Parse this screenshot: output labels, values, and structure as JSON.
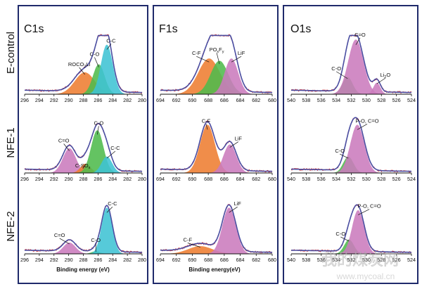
{
  "row_labels": [
    "E-control",
    "NFE-1",
    "NFE-2"
  ],
  "panel_titles": [
    "C1s",
    "F1s",
    "O1s"
  ],
  "xlabels": [
    "Binding energy (eV)",
    "Binding energy(eV)",
    ""
  ],
  "watermark": {
    "cn": "我的煤炭网",
    "url": "www.mycoal.cn"
  },
  "colors": {
    "orange": "#ee7d31",
    "green": "#4fbb4c",
    "cyan": "#3fc3d4",
    "pink": "#cb7bbd",
    "envelope": "#4a4fa3",
    "raw": "#d83a3a",
    "frame": "#1f2a6b"
  },
  "chart_data": [
    {
      "type": "area",
      "spectrum": "C1s",
      "x_ticks": [
        296,
        294,
        292,
        290,
        288,
        286,
        284,
        282,
        280
      ],
      "xlim": [
        296,
        280
      ],
      "rows": [
        {
          "sample": "E-control",
          "components": [
            {
              "label": "ROCO2Li",
              "label_parts": [
                "ROCO",
                "2",
                "Li"
              ],
              "center": 287.8,
              "fwhm": 3.2,
              "height": 0.38,
              "color": "orange"
            },
            {
              "label": "C-O",
              "center": 285.9,
              "fwhm": 1.9,
              "height": 0.52,
              "color": "green"
            },
            {
              "label": "C-C",
              "center": 284.8,
              "fwhm": 1.9,
              "height": 0.86,
              "color": "cyan"
            }
          ]
        },
        {
          "sample": "NFE-1",
          "components": [
            {
              "label": "C=O",
              "center": 289.9,
              "fwhm": 2.1,
              "height": 0.45,
              "color": "pink"
            },
            {
              "label": "C-SOx",
              "label_parts": [
                "C-SO",
                "x",
                ""
              ],
              "center": 287.7,
              "fwhm": 1.6,
              "height": 0.17,
              "color": "orange"
            },
            {
              "label": "C-O",
              "center": 286.1,
              "fwhm": 2.0,
              "height": 0.78,
              "color": "green"
            },
            {
              "label": "C-C",
              "center": 284.8,
              "fwhm": 1.7,
              "height": 0.3,
              "color": "cyan"
            }
          ]
        },
        {
          "sample": "NFE-2",
          "components": [
            {
              "label": "C=O",
              "center": 289.9,
              "fwhm": 2.0,
              "height": 0.22,
              "color": "pink"
            },
            {
              "label": "C-O",
              "center": 286.3,
              "fwhm": 1.4,
              "height": 0.05,
              "color": "green"
            },
            {
              "label": "C-C",
              "center": 284.8,
              "fwhm": 1.7,
              "height": 0.9,
              "color": "cyan"
            }
          ]
        }
      ]
    },
    {
      "type": "area",
      "spectrum": "F1s",
      "x_ticks": [
        694,
        692,
        690,
        688,
        686,
        684,
        682,
        680
      ],
      "xlim": [
        694,
        680
      ],
      "rows": [
        {
          "sample": "E-control",
          "components": [
            {
              "label": "C-F",
              "center": 687.9,
              "fwhm": 3.2,
              "height": 0.62,
              "color": "orange"
            },
            {
              "label": "POxFy",
              "label_parts": [
                "PO",
                "x",
                "F",
                "y"
              ],
              "center": 686.6,
              "fwhm": 2.6,
              "height": 0.58,
              "color": "green"
            },
            {
              "label": "LiF",
              "center": 685.1,
              "fwhm": 2.0,
              "height": 0.62,
              "color": "pink"
            }
          ]
        },
        {
          "sample": "NFE-1",
          "components": [
            {
              "label": "C-F",
              "center": 688.1,
              "fwhm": 2.2,
              "height": 0.88,
              "color": "orange"
            },
            {
              "label": "LiF",
              "center": 685.3,
              "fwhm": 1.9,
              "height": 0.52,
              "color": "pink"
            }
          ]
        },
        {
          "sample": "NFE-2",
          "components": [
            {
              "label": "C-F",
              "center": 689.0,
              "fwhm": 3.6,
              "height": 0.15,
              "color": "orange"
            },
            {
              "label": "LiF",
              "center": 685.4,
              "fwhm": 2.0,
              "height": 0.9,
              "color": "pink"
            }
          ]
        }
      ]
    },
    {
      "type": "area",
      "spectrum": "O1s",
      "x_ticks": [
        540,
        538,
        536,
        534,
        532,
        530,
        528,
        526,
        524
      ],
      "xlim": [
        540,
        524
      ],
      "rows": [
        {
          "sample": "E-control",
          "components": [
            {
              "label": "C-O",
              "center": 532.5,
              "fwhm": 1.6,
              "height": 0.3,
              "color": "green"
            },
            {
              "label": "C=O",
              "center": 531.4,
              "fwhm": 2.4,
              "height": 0.95,
              "color": "pink"
            },
            {
              "label": "Li2O",
              "label_parts": [
                "Li",
                "2",
                "O"
              ],
              "center": 528.6,
              "fwhm": 1.1,
              "height": 0.2,
              "color": "pink"
            }
          ]
        },
        {
          "sample": "NFE-1",
          "components": [
            {
              "label": "C-O",
              "center": 532.4,
              "fwhm": 1.6,
              "height": 0.3,
              "color": "green"
            },
            {
              "label": "P-O, C=O",
              "center": 531.2,
              "fwhm": 2.2,
              "height": 0.88,
              "color": "pink"
            }
          ]
        },
        {
          "sample": "NFE-2",
          "components": [
            {
              "label": "C-O",
              "center": 532.3,
              "fwhm": 1.5,
              "height": 0.28,
              "color": "green"
            },
            {
              "label": "P-O, C=O",
              "center": 531.1,
              "fwhm": 1.9,
              "height": 0.85,
              "color": "pink"
            }
          ]
        }
      ]
    }
  ]
}
